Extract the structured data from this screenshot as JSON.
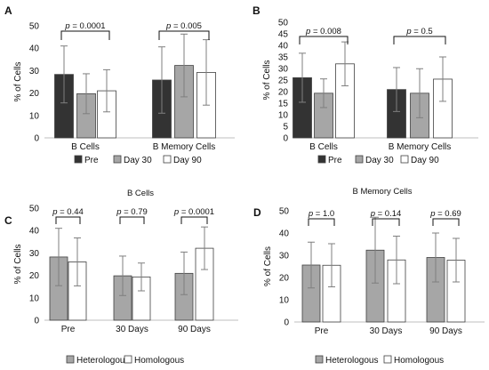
{
  "colors": {
    "pre": "#333333",
    "day30": "#a6a6a6",
    "day90": "#ffffff",
    "heterologous": "#a6a6a6",
    "homologous": "#ffffff",
    "axis": "#bfbfbf",
    "bar_outline": "#404040",
    "error": "#7f7f7f"
  },
  "chart_data": [
    {
      "panel": "A",
      "type": "bar",
      "title": "",
      "ylabel": "% of Cells",
      "ylim": [
        0,
        50
      ],
      "yticks": [
        0,
        10,
        20,
        30,
        40,
        50
      ],
      "categories": [
        "B Cells",
        "B Memory Cells"
      ],
      "series": [
        {
          "name": "Pre",
          "color": "#333333",
          "values": [
            28.3,
            25.8
          ],
          "error": [
            12.7,
            14.8
          ]
        },
        {
          "name": "Day 30",
          "color": "#a6a6a6",
          "values": [
            19.7,
            32.3
          ],
          "error": [
            8.9,
            14.0
          ]
        },
        {
          "name": "Day 90",
          "color": "#ffffff",
          "values": [
            21.0,
            29.2
          ],
          "error": [
            9.4,
            14.6
          ]
        }
      ],
      "annotations": [
        {
          "text": "p = 0.0001",
          "category": 0
        },
        {
          "text": "p = 0.005",
          "category": 1
        }
      ],
      "legend": "bottom"
    },
    {
      "panel": "B",
      "type": "bar",
      "title": "",
      "ylabel": "% of Cells",
      "ylim": [
        0,
        50
      ],
      "yticks": [
        0,
        5,
        10,
        15,
        20,
        25,
        30,
        35,
        40,
        45,
        50
      ],
      "categories": [
        "B Cells",
        "B Memory Cells"
      ],
      "series": [
        {
          "name": "Pre",
          "color": "#333333",
          "values": [
            26.0,
            20.9
          ],
          "error": [
            10.6,
            9.5
          ]
        },
        {
          "name": "Day 30",
          "color": "#a6a6a6",
          "values": [
            19.3,
            19.3
          ],
          "error": [
            6.2,
            10.6
          ]
        },
        {
          "name": "Day 90",
          "color": "#ffffff",
          "values": [
            32.0,
            25.4
          ],
          "error": [
            9.5,
            9.6
          ]
        }
      ],
      "annotations": [
        {
          "text": "p = 0.008",
          "category": 0
        },
        {
          "text": "p = 0.5",
          "category": 1
        }
      ],
      "legend": "bottom"
    },
    {
      "panel": "C",
      "type": "bar",
      "title": "B Cells",
      "ylabel": "% of Cells",
      "ylim": [
        0,
        50
      ],
      "yticks": [
        0,
        10,
        20,
        30,
        40,
        50
      ],
      "categories": [
        "Pre",
        "30 Days",
        "90 Days"
      ],
      "series": [
        {
          "name": "Heterologous",
          "color": "#a6a6a6",
          "values": [
            28.2,
            19.8,
            20.9
          ],
          "error": [
            12.8,
            8.8,
            9.5
          ]
        },
        {
          "name": "Homologous",
          "color": "#ffffff",
          "values": [
            26.0,
            19.3,
            32.1
          ],
          "error": [
            10.7,
            6.2,
            9.5
          ]
        }
      ],
      "annotations": [
        {
          "text": "p = 0.44",
          "category": 0
        },
        {
          "text": "p = 0.79",
          "category": 1
        },
        {
          "text": "p = 0.0001",
          "category": 2
        }
      ],
      "legend": "bottom"
    },
    {
      "panel": "D",
      "type": "bar",
      "title": "B Memory Cells",
      "ylabel": "% of Cells",
      "ylim": [
        0,
        50
      ],
      "yticks": [
        0,
        10,
        20,
        30,
        40,
        50
      ],
      "categories": [
        "Pre",
        "30 Days",
        "90 Days"
      ],
      "series": [
        {
          "name": "Heterologous",
          "color": "#a6a6a6",
          "values": [
            25.6,
            32.3,
            29.0
          ],
          "error": [
            10.3,
            14.8,
            11.0
          ]
        },
        {
          "name": "Homologous",
          "color": "#ffffff",
          "values": [
            25.5,
            27.9,
            27.8
          ],
          "error": [
            9.7,
            10.7,
            9.8
          ]
        }
      ],
      "annotations": [
        {
          "text": "p = 1.0",
          "category": 0
        },
        {
          "text": "p = 0.14",
          "category": 1
        },
        {
          "text": "p = 0.69",
          "category": 2
        }
      ],
      "legend": "bottom"
    }
  ]
}
